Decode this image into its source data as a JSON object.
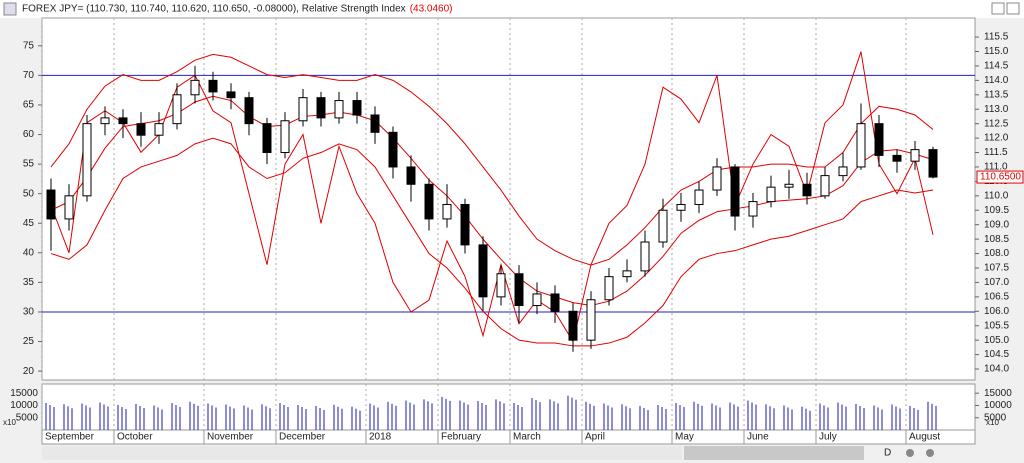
{
  "chart_data": [
    {
      "type": "candlestick",
      "title": "FOREX JPY= (110.730, 110.740, 110.620, 110.650, -0.08000), Relative Strength Index",
      "indicator_label": "(43.0460)",
      "last_price_label": "110.6500",
      "last_price": 110.65,
      "corner_label": "x10",
      "toolbar_label": "D",
      "categories": [
        "September",
        null,
        null,
        null,
        "October",
        null,
        null,
        null,
        null,
        "November",
        null,
        null,
        null,
        "December",
        null,
        null,
        null,
        null,
        "2018",
        null,
        null,
        null,
        "February",
        null,
        null,
        null,
        "March",
        null,
        null,
        null,
        "April",
        null,
        null,
        null,
        null,
        "May",
        null,
        null,
        null,
        "June",
        null,
        null,
        null,
        "July",
        null,
        null,
        null,
        null,
        "August",
        null
      ],
      "open": [
        110.2,
        109.2,
        110.0,
        112.5,
        112.7,
        112.5,
        112.1,
        112.5,
        113.5,
        114.0,
        113.6,
        113.4,
        112.5,
        111.5,
        112.6,
        113.4,
        112.7,
        113.3,
        112.8,
        112.2,
        111.0,
        110.4,
        109.2,
        109.7,
        108.3,
        106.5,
        107.3,
        106.2,
        106.6,
        106.0,
        105.0,
        106.4,
        107.2,
        107.4,
        108.4,
        109.5,
        109.7,
        110.2,
        111.0,
        109.3,
        109.8,
        110.3,
        110.4,
        110.0,
        110.7,
        111.0,
        112.5,
        111.4,
        111.2,
        111.6
      ],
      "high": [
        110.6,
        110.4,
        112.8,
        113.1,
        113.0,
        112.9,
        112.9,
        113.9,
        114.5,
        114.3,
        113.9,
        113.6,
        112.7,
        112.9,
        113.7,
        113.6,
        113.6,
        113.6,
        113.1,
        112.4,
        111.4,
        110.6,
        110.4,
        109.9,
        108.6,
        107.6,
        107.6,
        107.0,
        106.9,
        106.3,
        106.7,
        107.5,
        107.8,
        108.8,
        109.9,
        110.1,
        110.5,
        111.3,
        111.1,
        110.1,
        110.7,
        110.9,
        110.8,
        111.0,
        111.5,
        113.2,
        112.8,
        111.6,
        111.9,
        111.7
      ],
      "low": [
        108.1,
        108.8,
        109.8,
        112.1,
        112.0,
        111.7,
        111.8,
        112.3,
        113.2,
        113.3,
        113.0,
        112.1,
        111.1,
        111.3,
        112.4,
        112.4,
        112.5,
        112.5,
        111.8,
        110.6,
        109.8,
        108.8,
        108.9,
        108.0,
        106.0,
        106.2,
        105.6,
        105.9,
        105.6,
        104.6,
        104.7,
        106.2,
        107.0,
        107.2,
        108.2,
        109.1,
        109.4,
        110.0,
        108.8,
        108.9,
        109.6,
        109.9,
        109.7,
        109.9,
        110.5,
        110.9,
        111.0,
        110.8,
        110.9,
        110.6
      ],
      "close": [
        109.2,
        110.0,
        112.5,
        112.7,
        112.5,
        112.1,
        112.5,
        113.5,
        114.0,
        113.6,
        113.4,
        112.5,
        111.5,
        112.6,
        113.4,
        112.7,
        113.3,
        112.8,
        112.2,
        111.0,
        110.4,
        109.2,
        109.7,
        108.3,
        106.5,
        107.3,
        106.2,
        106.6,
        106.0,
        105.0,
        106.4,
        107.2,
        107.4,
        108.4,
        109.5,
        109.7,
        110.2,
        111.0,
        109.3,
        109.8,
        110.3,
        110.4,
        110.0,
        110.7,
        111.0,
        112.5,
        111.4,
        111.2,
        111.6,
        110.65
      ],
      "up_color": "#ffffff",
      "down_color": "#000000",
      "series": [
        {
          "color": "#e00000",
          "axis": "y2",
          "values": [
            48,
            40,
            62,
            64,
            62,
            57,
            60,
            68,
            70,
            64,
            62,
            50,
            38,
            55,
            60,
            45,
            58,
            50,
            45,
            35,
            30,
            32,
            42,
            36,
            26,
            38,
            28,
            32,
            30,
            25,
            38,
            45,
            48,
            55,
            68,
            66,
            62,
            70,
            48,
            55,
            60,
            58,
            50,
            62,
            65,
            74,
            55,
            50,
            56,
            43.046
          ]
        },
        {
          "color": "#e00000",
          "values": [
            111.0,
            111.8,
            113.0,
            113.8,
            114.2,
            114.0,
            114.0,
            114.3,
            114.7,
            114.9,
            114.8,
            114.5,
            114.2,
            114.1,
            114.2,
            114.1,
            114.0,
            114.0,
            114.2,
            114.0,
            113.6,
            113.1,
            112.5,
            111.8,
            111.0,
            110.2,
            109.3,
            108.5,
            108.1,
            107.8,
            107.6,
            107.8,
            108.3,
            108.9,
            109.6,
            110.2,
            110.5,
            110.9,
            111.0,
            111.0,
            111.1,
            111.1,
            111.0,
            111.0,
            111.5,
            112.5,
            113.1,
            113.0,
            112.8,
            112.3
          ]
        },
        {
          "color": "#e00000",
          "values": [
            109.5,
            109.8,
            110.65,
            111.65,
            112.4,
            112.5,
            112.6,
            112.85,
            113.25,
            113.45,
            113.3,
            112.75,
            112.4,
            112.45,
            112.75,
            112.8,
            112.9,
            112.8,
            112.6,
            112.0,
            111.3,
            110.55,
            110.0,
            109.3,
            108.5,
            107.8,
            107.15,
            106.7,
            106.5,
            106.3,
            106.2,
            106.35,
            106.7,
            107.25,
            107.9,
            108.7,
            109.15,
            109.45,
            109.55,
            109.65,
            109.8,
            109.85,
            109.9,
            110.0,
            110.35,
            111.15,
            111.55,
            111.6,
            111.45,
            111.25
          ]
        },
        {
          "color": "#e00000",
          "values": [
            108.0,
            107.8,
            108.3,
            109.5,
            110.6,
            111.0,
            111.2,
            111.4,
            111.8,
            112.0,
            111.8,
            111.0,
            110.6,
            110.8,
            111.3,
            111.5,
            111.8,
            111.6,
            111.0,
            110.0,
            109.0,
            108.0,
            107.5,
            106.8,
            106.0,
            105.4,
            105.0,
            104.9,
            104.9,
            104.8,
            104.8,
            104.9,
            105.1,
            105.6,
            106.2,
            107.2,
            107.8,
            108.0,
            108.1,
            108.3,
            108.5,
            108.6,
            108.8,
            109.0,
            109.2,
            109.8,
            110.0,
            110.2,
            110.1,
            110.2
          ]
        }
      ],
      "ylim": [
        103.62,
        116.16
      ],
      "yticks": [
        {
          "value": 104,
          "label": "104.0"
        },
        104.5,
        {
          "value": 105,
          "label": "105.0"
        },
        105.5,
        {
          "value": 106,
          "label": "106.0"
        },
        106.5,
        {
          "value": 107,
          "label": "107.0"
        },
        107.5,
        {
          "value": 108,
          "label": "108.0"
        },
        108.5,
        {
          "value": 109,
          "label": "109.0"
        },
        109.5,
        {
          "value": 110,
          "label": "110.0"
        },
        110.5,
        {
          "value": 111,
          "label": "111.0"
        },
        111.5,
        {
          "value": 112,
          "label": "112.0"
        },
        112.5,
        {
          "value": 113,
          "label": "113.0"
        },
        113.5,
        {
          "value": 114,
          "label": "114.0"
        },
        114.5,
        {
          "value": 115,
          "label": "115.0"
        },
        115.5
      ],
      "y2lim": [
        18.5,
        79.7
      ],
      "y2ticks": [
        20,
        25,
        30,
        35,
        40,
        45,
        50,
        55,
        60,
        65,
        70,
        75
      ],
      "hlines": [
        70,
        30
      ],
      "hline_color": "#2020c0",
      "grid": true
    },
    {
      "type": "bar",
      "color": "#4040c0",
      "values": [
        11000,
        10500,
        10800,
        11200,
        10200,
        10600,
        10000,
        11000,
        11500,
        10800,
        10400,
        10000,
        10500,
        11000,
        10200,
        9800,
        10300,
        9500,
        10800,
        11500,
        12000,
        12500,
        13500,
        12000,
        11800,
        12500,
        11000,
        13000,
        12500,
        14000,
        11500,
        10800,
        10500,
        9800,
        10200,
        11000,
        11500,
        10800,
        11200,
        12000,
        10500,
        10000,
        9500,
        10800,
        11200,
        10600,
        10000,
        10400,
        9800,
        11500
      ],
      "ylim": [
        0,
        18750
      ],
      "yticks": [
        5000,
        10000,
        15000
      ]
    }
  ]
}
